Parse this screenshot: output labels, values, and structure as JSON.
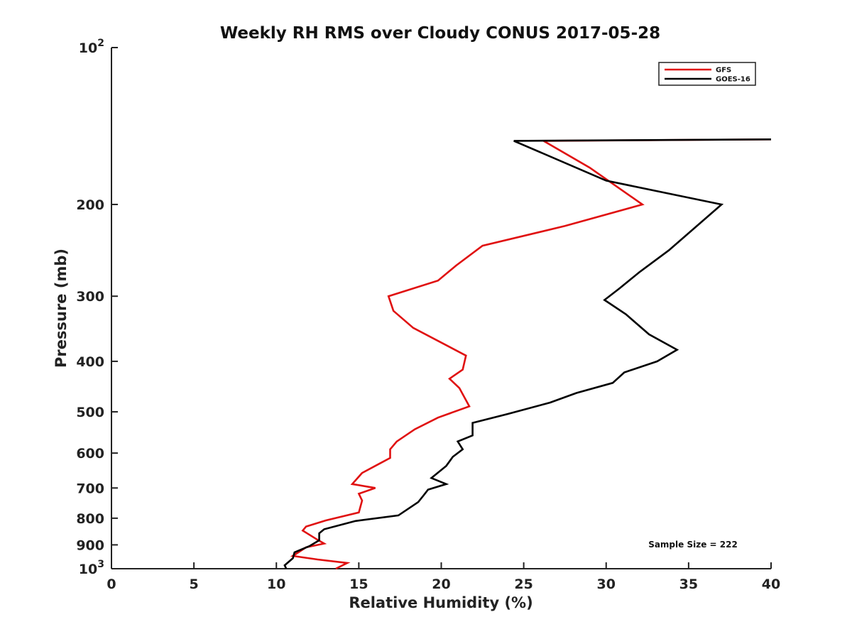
{
  "chart_data": {
    "type": "line",
    "title": "Weekly RH RMS over Cloudy CONUS 2017-05-28",
    "xlabel": "Relative Humidity (%)",
    "ylabel": "Pressure (mb)",
    "xlim": [
      0,
      40
    ],
    "ylim": [
      100,
      1000
    ],
    "y_scale": "log",
    "y_reversed": true,
    "x_ticks": [
      0,
      5,
      10,
      15,
      20,
      25,
      30,
      35,
      40
    ],
    "y_ticks": [
      {
        "value": 100,
        "label": "10",
        "sup": "2"
      },
      {
        "value": 200,
        "label": "200",
        "sup": ""
      },
      {
        "value": 300,
        "label": "300",
        "sup": ""
      },
      {
        "value": 400,
        "label": "400",
        "sup": ""
      },
      {
        "value": 500,
        "label": "500",
        "sup": ""
      },
      {
        "value": 600,
        "label": "600",
        "sup": ""
      },
      {
        "value": 700,
        "label": "700",
        "sup": ""
      },
      {
        "value": 800,
        "label": "800",
        "sup": ""
      },
      {
        "value": 900,
        "label": "900",
        "sup": ""
      },
      {
        "value": 1000,
        "label": "10",
        "sup": "3"
      }
    ],
    "grid": false,
    "legend_position": "top-right",
    "annotation": "Sample Size = 222",
    "series": [
      {
        "name": "GFS",
        "color": "#e01010",
        "points": [
          [
            40.0,
            150
          ],
          [
            26.2,
            151
          ],
          [
            29.0,
            170
          ],
          [
            32.2,
            200
          ],
          [
            27.5,
            220
          ],
          [
            22.5,
            240
          ],
          [
            20.9,
            262
          ],
          [
            19.8,
            280
          ],
          [
            16.8,
            300
          ],
          [
            17.1,
            320
          ],
          [
            18.3,
            345
          ],
          [
            21.5,
            390
          ],
          [
            21.3,
            415
          ],
          [
            20.5,
            432
          ],
          [
            21.1,
            450
          ],
          [
            21.7,
            488
          ],
          [
            19.8,
            513
          ],
          [
            18.4,
            540
          ],
          [
            17.3,
            570
          ],
          [
            16.9,
            590
          ],
          [
            16.9,
            613
          ],
          [
            16.2,
            630
          ],
          [
            15.2,
            655
          ],
          [
            14.6,
            688
          ],
          [
            16.0,
            700
          ],
          [
            15.0,
            718
          ],
          [
            15.2,
            740
          ],
          [
            15.0,
            780
          ],
          [
            13.0,
            808
          ],
          [
            11.8,
            830
          ],
          [
            11.6,
            845
          ],
          [
            12.5,
            880
          ],
          [
            12.9,
            895
          ],
          [
            11.8,
            910
          ],
          [
            11.0,
            945
          ],
          [
            12.5,
            960
          ],
          [
            14.3,
            975
          ],
          [
            13.6,
            1000
          ]
        ]
      },
      {
        "name": "GOES-16",
        "color": "#000000",
        "points": [
          [
            40.0,
            150
          ],
          [
            24.4,
            151
          ],
          [
            30.0,
            180
          ],
          [
            37.0,
            200
          ],
          [
            33.8,
            245
          ],
          [
            32.0,
            270
          ],
          [
            30.8,
            290
          ],
          [
            29.9,
            305
          ],
          [
            31.2,
            325
          ],
          [
            32.6,
            355
          ],
          [
            34.3,
            380
          ],
          [
            33.1,
            400
          ],
          [
            31.1,
            420
          ],
          [
            30.4,
            440
          ],
          [
            28.2,
            460
          ],
          [
            26.6,
            480
          ],
          [
            24.0,
            505
          ],
          [
            21.9,
            525
          ],
          [
            21.9,
            555
          ],
          [
            21.0,
            570
          ],
          [
            21.3,
            590
          ],
          [
            20.7,
            610
          ],
          [
            20.3,
            635
          ],
          [
            19.4,
            670
          ],
          [
            20.3,
            688
          ],
          [
            19.2,
            705
          ],
          [
            18.9,
            725
          ],
          [
            18.6,
            745
          ],
          [
            17.4,
            790
          ],
          [
            14.8,
            810
          ],
          [
            12.9,
            840
          ],
          [
            12.6,
            855
          ],
          [
            12.6,
            882
          ],
          [
            12.0,
            905
          ],
          [
            11.1,
            930
          ],
          [
            11.0,
            955
          ],
          [
            10.5,
            985
          ],
          [
            10.6,
            1000
          ]
        ]
      }
    ]
  }
}
